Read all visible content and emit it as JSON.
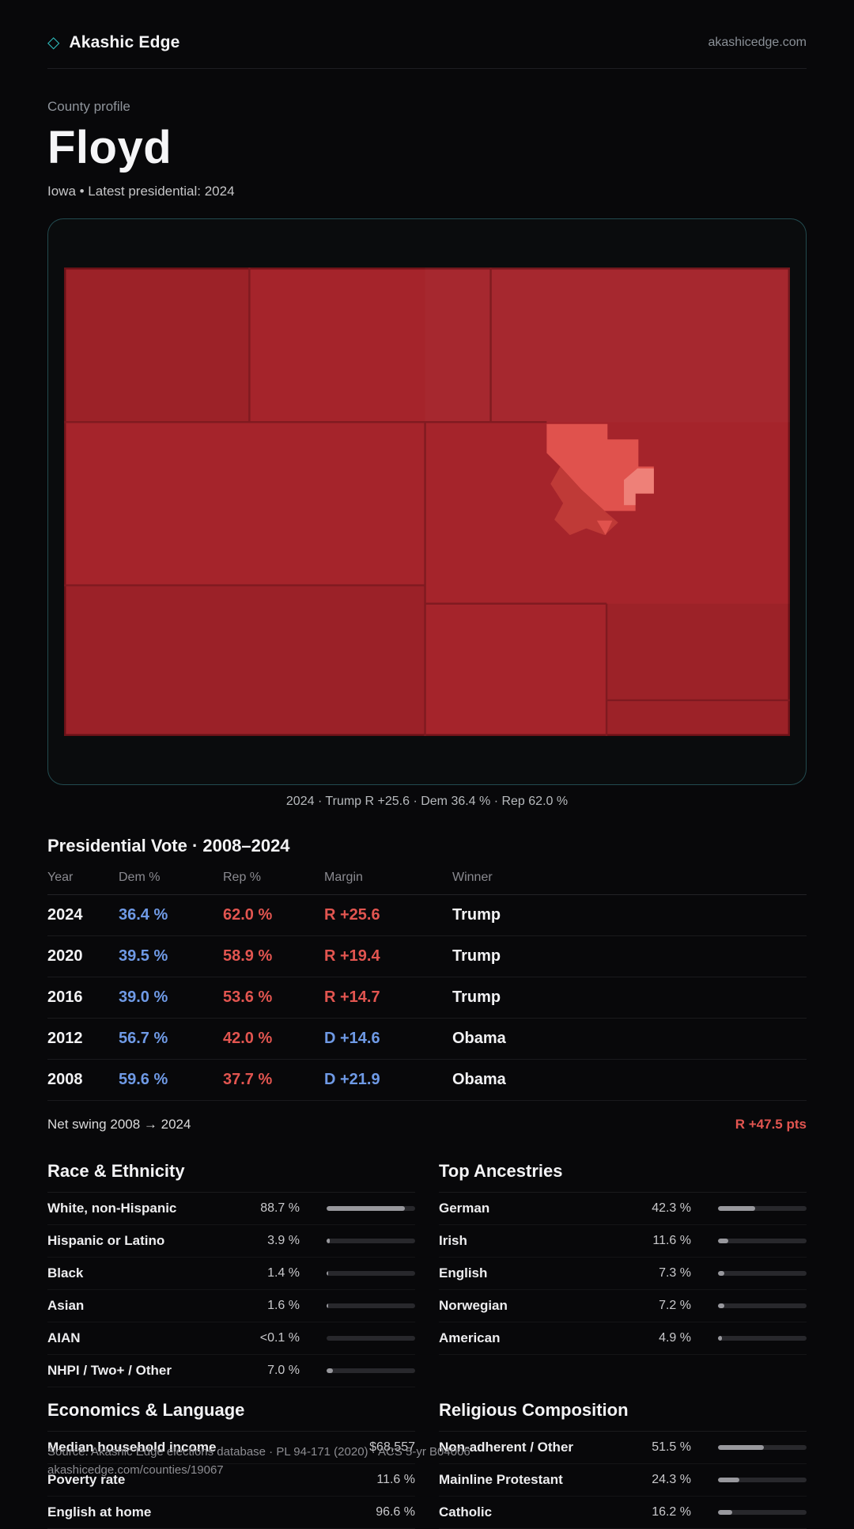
{
  "colors": {
    "accent_teal": "#2fbdbd",
    "dem_blue": "#6f9ae6",
    "rep_red": "#e25550",
    "map_base_red": "#a5242b",
    "map_light_red": "#e0524d"
  },
  "brand": {
    "logo_glyph": "◇",
    "name": "Akashic Edge",
    "domain": "akashicedge.com"
  },
  "profile": {
    "eyebrow": "County profile",
    "title": "Floyd",
    "subtitle": "Iowa • Latest presidential: 2024"
  },
  "map": {
    "caption": "2024 · Trump R +25.6 · Dem 36.4 % · Rep 62.0 %"
  },
  "vote": {
    "title": "Presidential Vote · 2008–2024",
    "columns": [
      "Year",
      "Dem %",
      "Rep %",
      "Margin",
      "Winner"
    ],
    "rows": [
      {
        "year": "2024",
        "dem": "36.4 %",
        "rep": "62.0 %",
        "margin": "R +25.6",
        "winner": "Trump"
      },
      {
        "year": "2020",
        "dem": "39.5 %",
        "rep": "58.9 %",
        "margin": "R +19.4",
        "winner": "Trump"
      },
      {
        "year": "2016",
        "dem": "39.0 %",
        "rep": "53.6 %",
        "margin": "R +14.7",
        "winner": "Trump"
      },
      {
        "year": "2012",
        "dem": "56.7 %",
        "rep": "42.0 %",
        "margin": "D +14.6",
        "winner": "Obama"
      },
      {
        "year": "2008",
        "dem": "59.6 %",
        "rep": "37.7 %",
        "margin": "D +21.9",
        "winner": "Obama"
      }
    ],
    "net_swing": {
      "label": "Net swing 2008 → 2024",
      "value": "R +47.5 pts"
    }
  },
  "sections": {
    "race": {
      "title": "Race & Ethnicity",
      "rows": [
        {
          "label": "White, non-Hispanic",
          "value": "88.7 %",
          "pct": 88.7
        },
        {
          "label": "Hispanic or Latino",
          "value": "3.9 %",
          "pct": 3.9
        },
        {
          "label": "Black",
          "value": "1.4 %",
          "pct": 1.4
        },
        {
          "label": "Asian",
          "value": "1.6 %",
          "pct": 1.6
        },
        {
          "label": "AIAN",
          "value": "<0.1 %",
          "pct": 0
        },
        {
          "label": "NHPI / Two+ / Other",
          "value": "7.0 %",
          "pct": 7
        }
      ]
    },
    "ancestries": {
      "title": "Top Ancestries",
      "rows": [
        {
          "label": "German",
          "value": "42.3 %",
          "pct": 42.3
        },
        {
          "label": "Irish",
          "value": "11.6 %",
          "pct": 11.6
        },
        {
          "label": "English",
          "value": "7.3 %",
          "pct": 7.3
        },
        {
          "label": "Norwegian",
          "value": "7.2 %",
          "pct": 7.2
        },
        {
          "label": "American",
          "value": "4.9 %",
          "pct": 4.9
        }
      ]
    },
    "economics": {
      "title": "Economics & Language",
      "rows": [
        {
          "label": "Median household income",
          "value": "$68,557"
        },
        {
          "label": "Poverty rate",
          "value": "11.6 %"
        },
        {
          "label": "English at home",
          "value": "96.6 %"
        }
      ]
    },
    "religion": {
      "title": "Religious Composition",
      "rows": [
        {
          "label": "Non-adherent / Other",
          "value": "51.5 %",
          "pct": 51.5
        },
        {
          "label": "Mainline Protestant",
          "value": "24.3 %",
          "pct": 24.3
        },
        {
          "label": "Catholic",
          "value": "16.2 %",
          "pct": 16.2
        }
      ]
    }
  },
  "footer": {
    "source": "Source: Akashic Edge elections database · PL 94-171 (2020) · ACS 5-yr B04006",
    "url": "akashicedge.com/counties/19067"
  }
}
